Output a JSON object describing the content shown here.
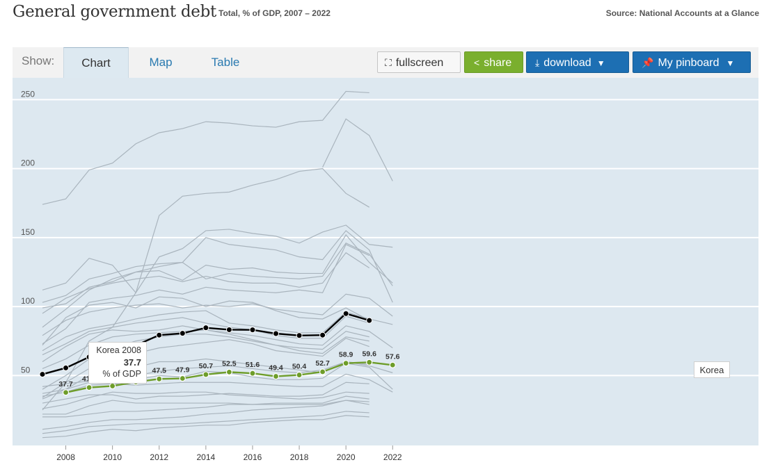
{
  "header": {
    "title": "General government debt",
    "subtitle": "Total, % of GDP, 2007 – 2022",
    "source": "Source: National Accounts at a Glance"
  },
  "toolbar": {
    "show_label": "Show:",
    "tabs": [
      {
        "label": "Chart",
        "active": true
      },
      {
        "label": "Map",
        "active": false
      },
      {
        "label": "Table",
        "active": false
      }
    ],
    "fullscreen_label": "fullscreen",
    "share_label": "share",
    "download_label": "download",
    "pinboard_label": "My pinboard"
  },
  "colors": {
    "background": "#dde8f0",
    "grid": "#ffffff",
    "other_countries": "#a9b4bd",
    "highlight": "#000000",
    "korea": "#6e9d2a"
  },
  "tooltip": {
    "country_year": "Korea 2008",
    "value": "37.7",
    "unit": "% of GDP"
  },
  "korea_label": "Korea",
  "chart_data": {
    "type": "line",
    "xlim": [
      2007,
      2022
    ],
    "ylim": [
      0,
      255
    ],
    "x_ticks": [
      2008,
      2010,
      2012,
      2014,
      2016,
      2018,
      2020,
      2022
    ],
    "y_ticks": [
      50,
      100,
      150,
      200,
      250
    ],
    "grid": true,
    "highlighted": {
      "x": [
        2007,
        2008,
        2009,
        2010,
        2011,
        2012,
        2013,
        2014,
        2015,
        2016,
        2017,
        2018,
        2019,
        2020,
        2021
      ],
      "values": [
        50.9,
        55.5,
        63.4,
        68.6,
        71.8,
        79.3,
        80.6,
        84.6,
        83.2,
        83.1,
        80.4,
        79.0,
        79.3,
        94.9,
        89.9
      ]
    },
    "korea": {
      "name": "Korea",
      "x": [
        2008,
        2009,
        2010,
        2011,
        2012,
        2013,
        2014,
        2015,
        2016,
        2017,
        2018,
        2019,
        2020,
        2021,
        2022
      ],
      "values": [
        37.7,
        41.3,
        42.4,
        45.3,
        47.5,
        47.9,
        50.7,
        52.5,
        51.6,
        49.4,
        50.4,
        52.7,
        58.9,
        59.6,
        57.6
      ]
    },
    "others": [
      {
        "x": [
          2007,
          2008,
          2009,
          2010,
          2011,
          2012,
          2013,
          2014,
          2015,
          2016,
          2017,
          2018,
          2019,
          2020,
          2021
        ],
        "values": [
          174,
          178,
          199,
          204,
          218,
          226,
          229,
          234,
          233,
          231,
          230,
          234,
          235,
          256,
          255
        ]
      },
      {
        "x": [
          2019,
          2020,
          2021,
          2022
        ],
        "values": [
          201,
          236,
          224,
          191
        ]
      },
      {
        "x": [
          2007,
          2008,
          2009,
          2010,
          2011,
          2012,
          2013,
          2014,
          2015,
          2016,
          2017,
          2018,
          2019,
          2020,
          2021
        ],
        "values": [
          25,
          45,
          75,
          85,
          110,
          166,
          180,
          182,
          183,
          188,
          192,
          198,
          200,
          182,
          172
        ]
      },
      {
        "x": [
          2007,
          2008,
          2009,
          2010,
          2011,
          2012,
          2013,
          2014,
          2015,
          2016,
          2017,
          2018,
          2019,
          2020,
          2021,
          2022
        ],
        "values": [
          112,
          117,
          135,
          130,
          110,
          136,
          142,
          155,
          156,
          153,
          151,
          146,
          154,
          159,
          145,
          143
        ]
      },
      {
        "x": [
          2007,
          2008,
          2009,
          2010,
          2011,
          2012,
          2013,
          2014,
          2015,
          2016,
          2017,
          2018,
          2019,
          2020,
          2021,
          2022
        ],
        "values": [
          103,
          108,
          120,
          124,
          129,
          131,
          132,
          150,
          145,
          143,
          141,
          136,
          134,
          155,
          141,
          103
        ]
      },
      {
        "x": [
          2007,
          2008,
          2009,
          2010,
          2011,
          2012,
          2013,
          2014,
          2015,
          2016,
          2017,
          2018,
          2019,
          2020,
          2021,
          2022
        ],
        "values": [
          85,
          98,
          112,
          120,
          125,
          129,
          132,
          120,
          124,
          122,
          121,
          120,
          122,
          146,
          138,
          115
        ]
      },
      {
        "x": [
          2007,
          2008,
          2009,
          2010,
          2011,
          2012,
          2013,
          2014,
          2015,
          2016,
          2017,
          2018,
          2019,
          2020,
          2021,
          2022
        ],
        "values": [
          99,
          102,
          114,
          118,
          125,
          126,
          119,
          130,
          127,
          128,
          125,
          124,
          124,
          152,
          132,
          117
        ]
      },
      {
        "x": [
          2007,
          2008,
          2009,
          2010,
          2011,
          2012,
          2013,
          2014,
          2015,
          2016,
          2017,
          2018,
          2019,
          2020,
          2021
        ],
        "values": [
          95,
          106,
          113,
          117,
          120,
          122,
          118,
          122,
          118,
          117,
          117,
          114,
          117,
          139,
          128
        ]
      },
      {
        "x": [
          2007,
          2008,
          2009,
          2010,
          2011,
          2012,
          2013,
          2014,
          2015,
          2016,
          2017,
          2018,
          2019,
          2020,
          2021
        ],
        "values": [
          73,
          84,
          103,
          106,
          108,
          112,
          109,
          114,
          112,
          111,
          110,
          112,
          110,
          145,
          137
        ]
      },
      {
        "x": [
          2007,
          2008,
          2009,
          2010,
          2011,
          2012,
          2013,
          2014,
          2015,
          2016,
          2017,
          2018,
          2019,
          2020,
          2021
        ],
        "values": [
          72,
          92,
          101,
          103,
          99,
          107,
          106,
          100,
          104,
          103,
          97,
          92,
          91,
          99,
          90
        ]
      },
      {
        "x": [
          2007,
          2008,
          2009,
          2010,
          2011,
          2012,
          2013,
          2014,
          2015,
          2016,
          2017,
          2018,
          2019,
          2020,
          2021,
          2022
        ],
        "values": [
          79,
          90,
          96,
          99,
          101,
          102,
          99,
          101,
          100,
          102,
          98,
          96,
          94,
          109,
          106,
          93
        ]
      },
      {
        "x": [
          2007,
          2008,
          2009,
          2010,
          2011,
          2012,
          2013,
          2014,
          2015,
          2016,
          2017,
          2018,
          2019,
          2020,
          2021,
          2022
        ],
        "values": [
          68,
          78,
          84,
          87,
          91,
          94,
          96,
          97,
          88,
          86,
          83,
          81,
          81,
          96,
          91,
          87
        ]
      },
      {
        "x": [
          2007,
          2008,
          2009,
          2010,
          2011,
          2012,
          2013,
          2014,
          2015,
          2016,
          2017,
          2018,
          2019,
          2020,
          2021
        ],
        "values": [
          65,
          73,
          82,
          85,
          88,
          90,
          92,
          88,
          85,
          83,
          79,
          77,
          77,
          93,
          88
        ]
      },
      {
        "x": [
          2007,
          2008,
          2009,
          2010,
          2011,
          2012,
          2013,
          2014,
          2015,
          2016,
          2017,
          2018,
          2019,
          2020,
          2021,
          2022
        ],
        "values": [
          60,
          71,
          80,
          83,
          82,
          83,
          86,
          83,
          81,
          79,
          76,
          73,
          72,
          86,
          82,
          70
        ]
      },
      {
        "x": [
          2007,
          2008,
          2009,
          2010,
          2011,
          2012,
          2013,
          2014,
          2015,
          2016,
          2017,
          2018,
          2019,
          2020,
          2021
        ],
        "values": [
          55,
          62,
          72,
          78,
          80,
          81,
          82,
          83,
          80,
          76,
          72,
          70,
          69,
          82,
          78
        ]
      },
      {
        "x": [
          2007,
          2008,
          2009,
          2010,
          2011,
          2012,
          2013,
          2014,
          2015,
          2016,
          2017,
          2018,
          2019,
          2020,
          2021
        ],
        "values": [
          40,
          50,
          62,
          70,
          75,
          78,
          80,
          80,
          78,
          75,
          72,
          68,
          66,
          78,
          75
        ]
      },
      {
        "x": [
          2007,
          2008,
          2009,
          2010,
          2011,
          2012,
          2013,
          2014,
          2015,
          2016,
          2017,
          2018,
          2019,
          2020,
          2021
        ],
        "values": [
          34,
          45,
          55,
          62,
          66,
          70,
          72,
          74,
          76,
          73,
          68,
          66,
          64,
          77,
          71
        ]
      },
      {
        "x": [
          2007,
          2008,
          2009,
          2010,
          2011,
          2012,
          2013,
          2014,
          2015,
          2016,
          2017,
          2018,
          2019,
          2020,
          2021
        ],
        "values": [
          33,
          40,
          50,
          56,
          56,
          60,
          60,
          62,
          60,
          58,
          56,
          54,
          52,
          60,
          58
        ]
      },
      {
        "x": [
          2007,
          2008,
          2009,
          2010,
          2011,
          2012,
          2013,
          2014,
          2015,
          2016,
          2017,
          2018,
          2019,
          2020,
          2021,
          2022
        ],
        "values": [
          37,
          40,
          45,
          48,
          50,
          53,
          55,
          56,
          57,
          55,
          53,
          52,
          54,
          60,
          57,
          52
        ]
      },
      {
        "x": [
          2007,
          2008,
          2009,
          2010,
          2011,
          2012,
          2013,
          2014,
          2015,
          2016,
          2017,
          2018,
          2019,
          2020,
          2021,
          2022
        ],
        "values": [
          42,
          44,
          46,
          47,
          47,
          50,
          49,
          53,
          52,
          49,
          47,
          47,
          48,
          59,
          56,
          40
        ]
      },
      {
        "x": [
          2007,
          2008,
          2009,
          2010,
          2011,
          2012,
          2013,
          2014,
          2015,
          2016,
          2017,
          2018,
          2019,
          2020,
          2021,
          2022
        ],
        "values": [
          35,
          38,
          43,
          44,
          43,
          44,
          45,
          45,
          45,
          44,
          43,
          42,
          42,
          51,
          47,
          38
        ]
      },
      {
        "x": [
          2007,
          2008,
          2009,
          2010,
          2011,
          2012,
          2013,
          2014,
          2015,
          2016,
          2017,
          2018,
          2019,
          2020,
          2021
        ],
        "values": [
          30,
          33,
          36,
          36,
          33,
          35,
          35,
          36,
          37,
          36,
          35,
          35,
          36,
          45,
          44
        ]
      },
      {
        "x": [
          2007,
          2008,
          2009,
          2010,
          2011,
          2012,
          2013,
          2014,
          2015,
          2016,
          2017,
          2018,
          2019,
          2020,
          2021
        ],
        "values": [
          26,
          29,
          34,
          38,
          37,
          37,
          38,
          38,
          36,
          35,
          34,
          33,
          34,
          38,
          37
        ]
      },
      {
        "x": [
          2007,
          2008,
          2009,
          2010,
          2011,
          2012,
          2013,
          2014,
          2015,
          2016,
          2017,
          2018,
          2019,
          2020,
          2021
        ],
        "values": [
          22,
          22,
          28,
          32,
          30,
          30,
          30,
          30,
          30,
          29,
          29,
          29,
          29,
          32,
          31
        ]
      },
      {
        "x": [
          2007,
          2008,
          2009,
          2010,
          2011,
          2012,
          2013,
          2014,
          2015,
          2016,
          2017,
          2018,
          2019,
          2020,
          2021
        ],
        "values": [
          20,
          20,
          22,
          24,
          24,
          25,
          26,
          27,
          29,
          29,
          30,
          30,
          30,
          35,
          33
        ]
      },
      {
        "x": [
          2007,
          2008,
          2009,
          2010,
          2011,
          2012,
          2013,
          2014,
          2015,
          2016,
          2017,
          2018,
          2019,
          2020,
          2021
        ],
        "values": [
          11,
          13,
          16,
          18,
          18,
          19,
          20,
          22,
          23,
          25,
          26,
          27,
          28,
          32,
          29
        ]
      },
      {
        "x": [
          2007,
          2008,
          2009,
          2010,
          2011,
          2012,
          2013,
          2014,
          2015,
          2016,
          2017,
          2018,
          2019,
          2020,
          2021
        ],
        "values": [
          8,
          10,
          13,
          14,
          15,
          15,
          15,
          16,
          17,
          18,
          19,
          20,
          21,
          24,
          23
        ]
      },
      {
        "x": [
          2007,
          2008,
          2009,
          2010,
          2011,
          2012,
          2013,
          2014,
          2015,
          2016,
          2017,
          2018,
          2019,
          2020,
          2021
        ],
        "values": [
          5,
          6,
          9,
          11,
          10,
          12,
          13,
          14,
          14,
          16,
          17,
          18,
          18,
          21,
          20
        ]
      }
    ]
  }
}
